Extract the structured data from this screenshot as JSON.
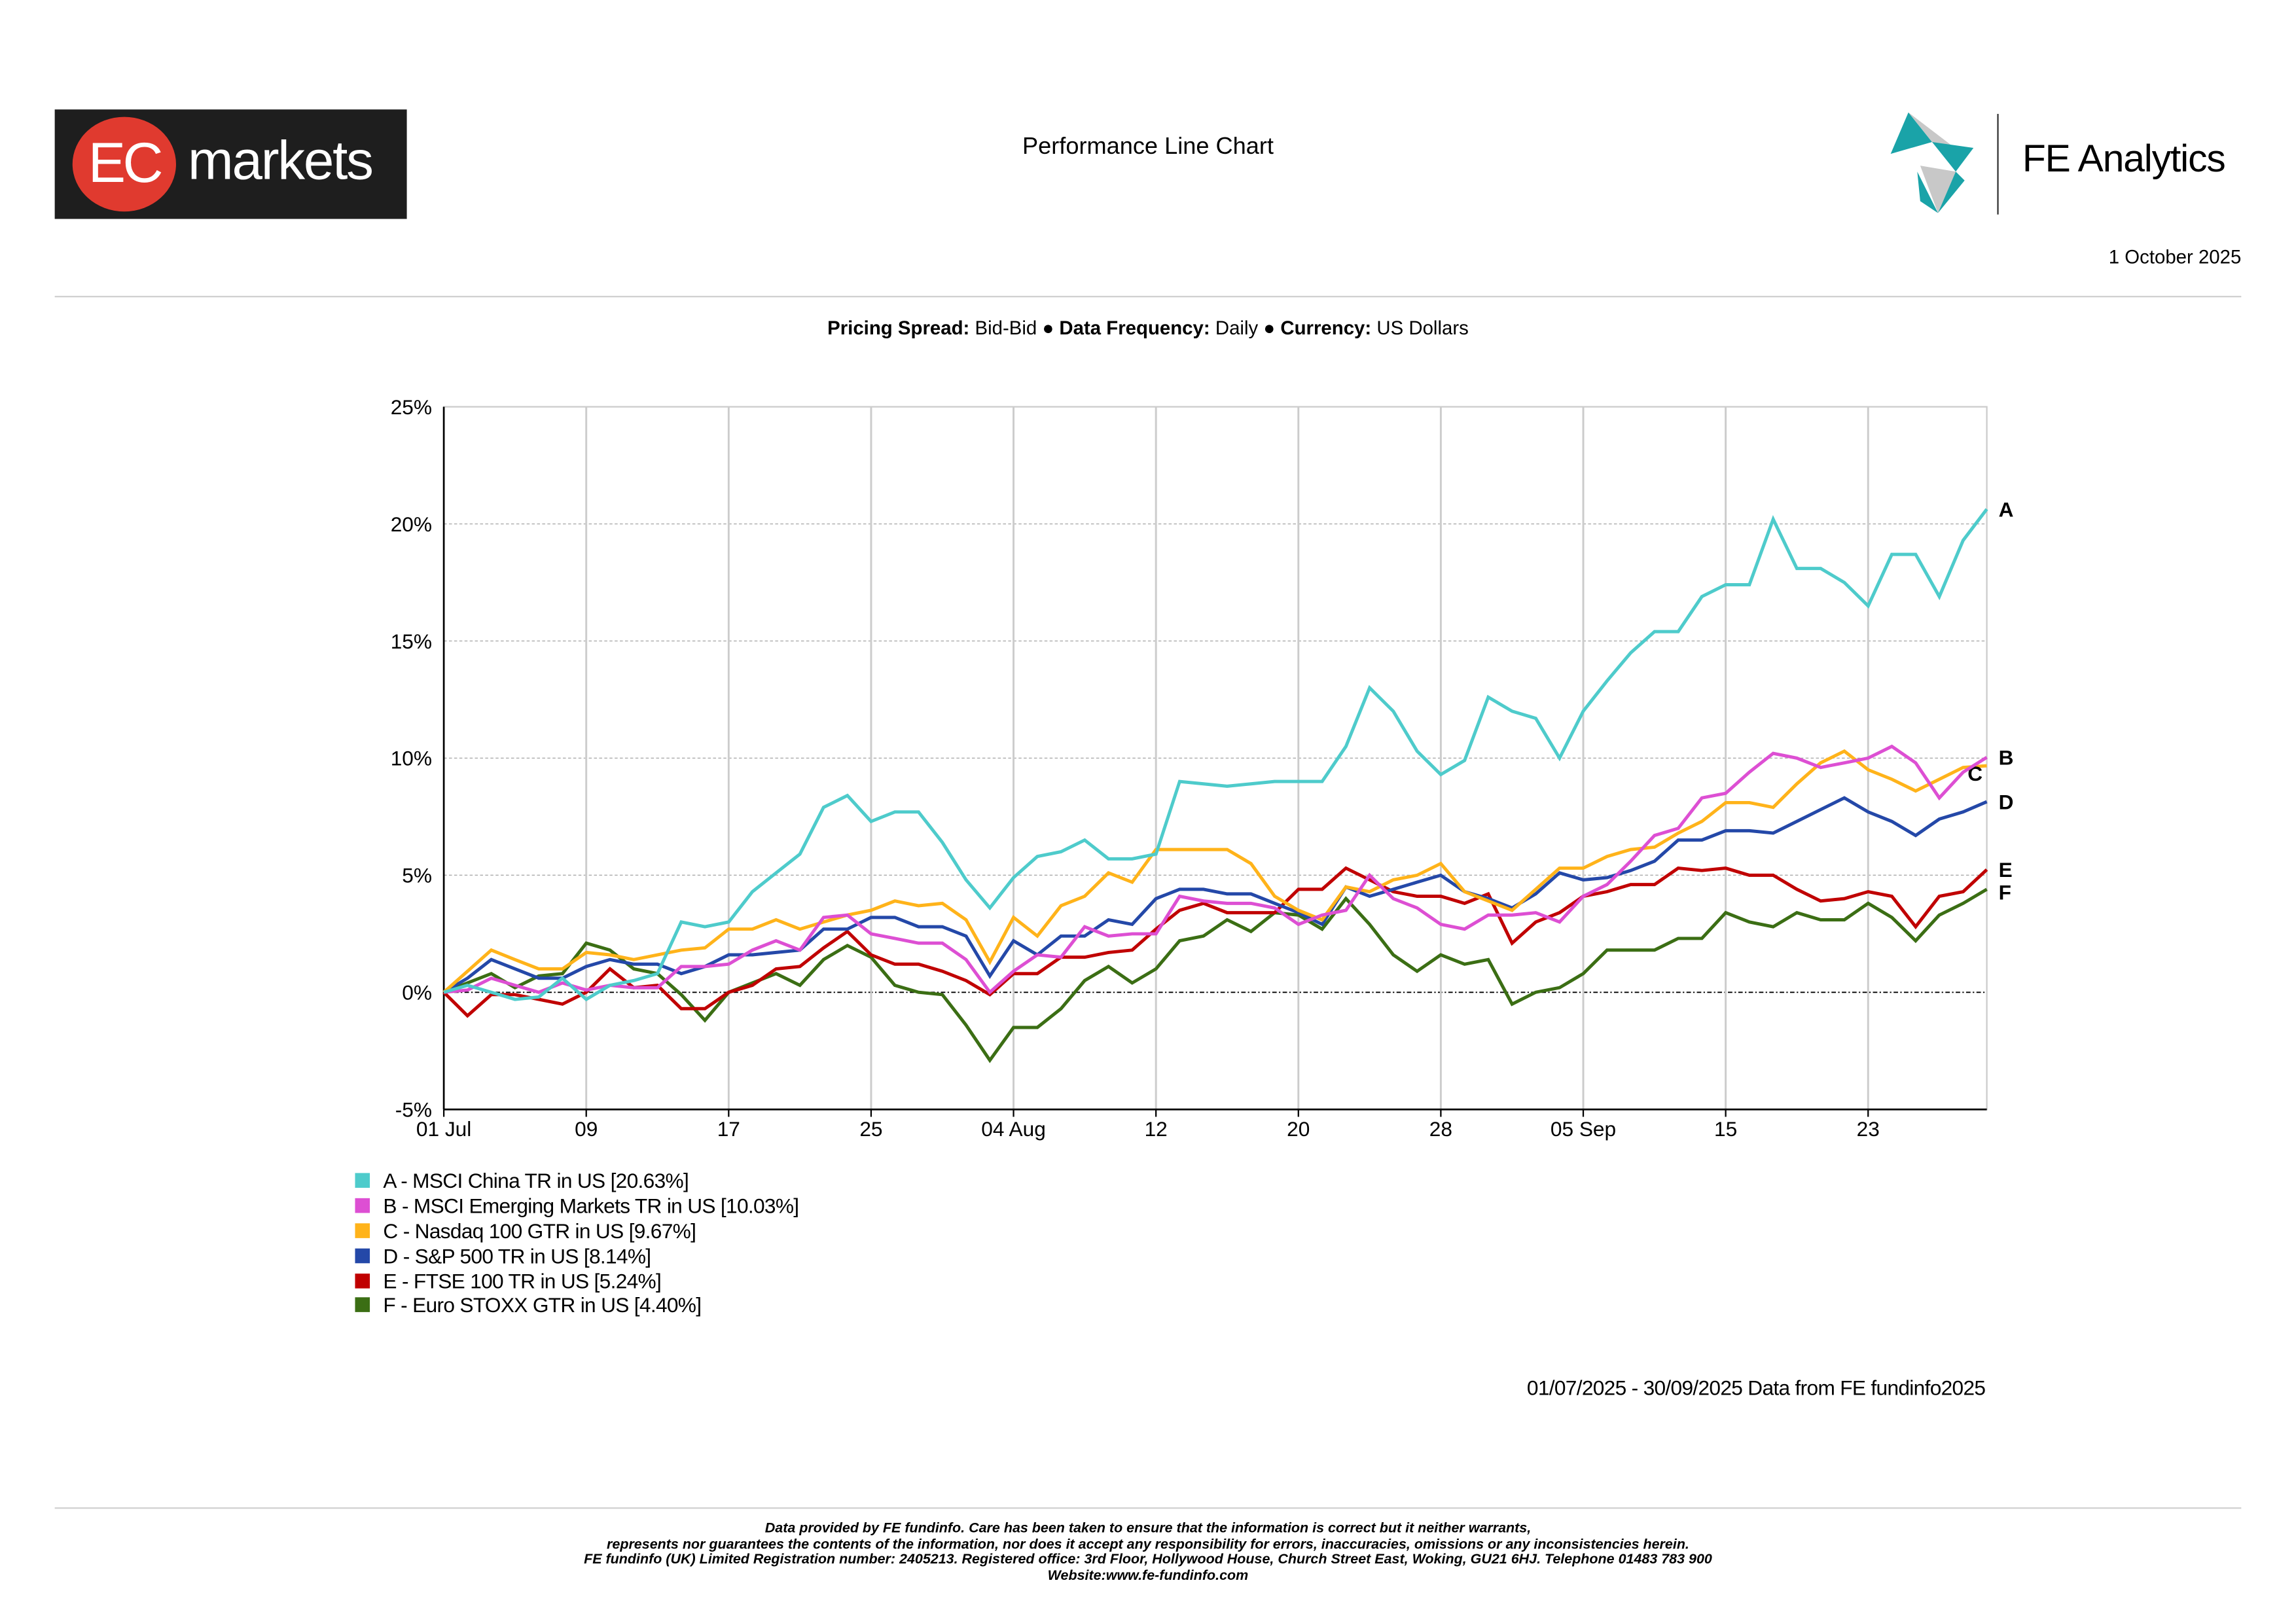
{
  "header": {
    "logo_left": {
      "circle_text": "EC",
      "word": "markets"
    },
    "title": "Performance Line Chart",
    "logo_right": {
      "name": "FE Analytics",
      "colors": [
        "#1aa3a8",
        "#c8c8c8"
      ]
    },
    "date": "1 October 2025"
  },
  "settings": {
    "spread_label": "Pricing Spread:",
    "spread_value": "Bid-Bid",
    "frequency_label": "Data Frequency:",
    "frequency_value": "Daily",
    "currency_label": "Currency:",
    "currency_value": "US Dollars",
    "separator": "●"
  },
  "chart_data": {
    "type": "line",
    "ylim": [
      -5,
      25
    ],
    "y_ticks": [
      -5,
      0,
      5,
      10,
      15,
      20,
      25
    ],
    "y_tick_labels": [
      "-5%",
      "0%",
      "5%",
      "10%",
      "15%",
      "20%",
      "25%"
    ],
    "grid": true,
    "x_tick_labels": [
      {
        "date": "2025-07-01",
        "label": "01 Jul"
      },
      {
        "date": "2025-07-09",
        "label": "09"
      },
      {
        "date": "2025-07-17",
        "label": "17"
      },
      {
        "date": "2025-07-25",
        "label": "25"
      },
      {
        "date": "2025-08-04",
        "label": "04 Aug"
      },
      {
        "date": "2025-08-12",
        "label": "12"
      },
      {
        "date": "2025-08-20",
        "label": "20"
      },
      {
        "date": "2025-08-28",
        "label": "28"
      },
      {
        "date": "2025-09-05",
        "label": "05 Sep"
      },
      {
        "date": "2025-09-15",
        "label": "15"
      },
      {
        "date": "2025-09-23",
        "label": "23"
      }
    ],
    "x": [
      "2025-07-01",
      "2025-07-02",
      "2025-07-03",
      "2025-07-04",
      "2025-07-07",
      "2025-07-08",
      "2025-07-09",
      "2025-07-10",
      "2025-07-11",
      "2025-07-14",
      "2025-07-15",
      "2025-07-16",
      "2025-07-17",
      "2025-07-18",
      "2025-07-21",
      "2025-07-22",
      "2025-07-23",
      "2025-07-24",
      "2025-07-25",
      "2025-07-28",
      "2025-07-29",
      "2025-07-30",
      "2025-07-31",
      "2025-08-01",
      "2025-08-04",
      "2025-08-05",
      "2025-08-06",
      "2025-08-07",
      "2025-08-08",
      "2025-08-11",
      "2025-08-12",
      "2025-08-13",
      "2025-08-14",
      "2025-08-15",
      "2025-08-18",
      "2025-08-19",
      "2025-08-20",
      "2025-08-21",
      "2025-08-22",
      "2025-08-25",
      "2025-08-26",
      "2025-08-27",
      "2025-08-28",
      "2025-08-29",
      "2025-09-01",
      "2025-09-02",
      "2025-09-03",
      "2025-09-04",
      "2025-09-05",
      "2025-09-08",
      "2025-09-09",
      "2025-09-10",
      "2025-09-11",
      "2025-09-12",
      "2025-09-15",
      "2025-09-16",
      "2025-09-17",
      "2025-09-18",
      "2025-09-19",
      "2025-09-22",
      "2025-09-23",
      "2025-09-24",
      "2025-09-25",
      "2025-09-26",
      "2025-09-29",
      "2025-09-30"
    ],
    "series": [
      {
        "letter": "A",
        "name": "A - MSCI China TR in US [20.63%]",
        "color": "#4ecbcb",
        "values": [
          0,
          0.3,
          0,
          -0.3,
          -0.2,
          0.6,
          -0.3,
          0.3,
          0.5,
          0.8,
          3.0,
          2.8,
          3.0,
          4.3,
          5.1,
          5.9,
          7.9,
          8.4,
          7.3,
          7.7,
          7.7,
          6.4,
          4.8,
          3.6,
          4.9,
          5.8,
          6.0,
          6.5,
          5.7,
          5.7,
          5.9,
          9.0,
          8.9,
          8.8,
          8.9,
          9.0,
          9.0,
          9.0,
          10.5,
          13.0,
          12.0,
          10.3,
          9.3,
          9.9,
          12.6,
          12.0,
          11.7,
          10.0,
          12.0,
          13.3,
          14.5,
          15.4,
          15.4,
          16.9,
          17.4,
          17.4,
          20.2,
          18.1,
          18.1,
          17.5,
          16.5,
          18.7,
          18.7,
          16.9,
          19.3,
          20.63
        ]
      },
      {
        "letter": "B",
        "name": "B - MSCI Emerging Markets TR in US [10.03%]",
        "color": "#dd4fd3",
        "values": [
          0,
          0.1,
          0.6,
          0.3,
          0,
          0.4,
          0.1,
          0.3,
          0.2,
          0.2,
          1.1,
          1.1,
          1.2,
          1.8,
          2.2,
          1.8,
          3.2,
          3.3,
          2.5,
          2.3,
          2.1,
          2.1,
          1.4,
          0,
          0.9,
          1.6,
          1.5,
          2.8,
          2.4,
          2.5,
          2.5,
          4.1,
          3.9,
          3.8,
          3.8,
          3.6,
          2.9,
          3.3,
          3.5,
          5.0,
          4.0,
          3.6,
          2.9,
          2.7,
          3.3,
          3.3,
          3.4,
          3.0,
          4.1,
          4.6,
          5.6,
          6.7,
          7.0,
          8.3,
          8.5,
          9.4,
          10.2,
          10.0,
          9.6,
          9.8,
          10.0,
          10.5,
          9.8,
          8.3,
          9.4,
          10.03
        ]
      },
      {
        "letter": "C",
        "name": "C - Nasdaq 100 GTR in US [9.67%]",
        "color": "#ffb31a",
        "values": [
          0,
          0.9,
          1.8,
          1.4,
          1.0,
          1.0,
          1.7,
          1.6,
          1.4,
          1.6,
          1.8,
          1.9,
          2.7,
          2.7,
          3.1,
          2.7,
          3.0,
          3.3,
          3.5,
          3.9,
          3.7,
          3.8,
          3.1,
          1.3,
          3.2,
          2.4,
          3.7,
          4.1,
          5.1,
          4.7,
          6.1,
          6.1,
          6.1,
          6.1,
          5.5,
          4.1,
          3.5,
          3.1,
          4.5,
          4.3,
          4.8,
          5.0,
          5.5,
          4.3,
          3.9,
          3.5,
          4.4,
          5.3,
          5.3,
          5.8,
          6.1,
          6.2,
          6.8,
          7.3,
          8.1,
          8.1,
          7.9,
          8.9,
          9.8,
          10.3,
          9.5,
          9.1,
          8.6,
          9.1,
          9.6,
          9.67
        ]
      },
      {
        "letter": "D",
        "name": "D - S&P 500 TR in US [8.14%]",
        "color": "#2448a8",
        "values": [
          0,
          0.6,
          1.4,
          1.0,
          0.6,
          0.6,
          1.1,
          1.4,
          1.2,
          1.2,
          0.8,
          1.1,
          1.6,
          1.6,
          1.7,
          1.8,
          2.7,
          2.7,
          3.2,
          3.2,
          2.8,
          2.8,
          2.4,
          0.7,
          2.2,
          1.6,
          2.4,
          2.4,
          3.1,
          2.9,
          4.0,
          4.4,
          4.4,
          4.2,
          4.2,
          3.8,
          3.4,
          2.9,
          4.5,
          4.1,
          4.4,
          4.7,
          5.0,
          4.3,
          4.0,
          3.6,
          4.2,
          5.1,
          4.8,
          4.9,
          5.2,
          5.6,
          6.5,
          6.5,
          6.9,
          6.9,
          6.8,
          7.3,
          7.8,
          8.3,
          7.7,
          7.3,
          6.7,
          7.4,
          7.7,
          8.14
        ]
      },
      {
        "letter": "E",
        "name": "E - FTSE 100 TR in US [5.24%]",
        "color": "#c00000",
        "values": [
          0,
          -1.0,
          -0.1,
          -0.1,
          -0.3,
          -0.5,
          0.0,
          1.0,
          0.2,
          0.3,
          -0.7,
          -0.7,
          0.0,
          0.3,
          1.0,
          1.1,
          1.9,
          2.6,
          1.6,
          1.2,
          1.2,
          0.9,
          0.5,
          -0.1,
          0.8,
          0.8,
          1.5,
          1.5,
          1.7,
          1.8,
          2.7,
          3.5,
          3.8,
          3.4,
          3.4,
          3.4,
          4.4,
          4.4,
          5.3,
          4.8,
          4.3,
          4.1,
          4.1,
          3.8,
          4.2,
          2.1,
          3.0,
          3.4,
          4.1,
          4.3,
          4.6,
          4.6,
          5.3,
          5.2,
          5.3,
          5.0,
          5.0,
          4.4,
          3.9,
          4.0,
          4.3,
          4.1,
          2.8,
          4.1,
          4.3,
          5.24
        ]
      },
      {
        "letter": "F",
        "name": "F - Euro STOXX GTR in US [4.40%]",
        "color": "#3b6e14",
        "values": [
          0,
          0.4,
          0.8,
          0.2,
          0.7,
          0.8,
          2.1,
          1.8,
          1.0,
          0.8,
          -0.1,
          -1.2,
          0.0,
          0.4,
          0.8,
          0.3,
          1.4,
          2.0,
          1.5,
          0.3,
          0.0,
          -0.1,
          -1.4,
          -2.9,
          -1.5,
          -1.5,
          -0.7,
          0.5,
          1.1,
          0.4,
          1.0,
          2.2,
          2.4,
          3.1,
          2.6,
          3.4,
          3.3,
          2.7,
          4.0,
          2.9,
          1.6,
          0.9,
          1.6,
          1.2,
          1.4,
          -0.5,
          0.0,
          0.2,
          0.8,
          1.8,
          1.8,
          1.8,
          2.3,
          2.3,
          3.4,
          3.0,
          2.8,
          3.4,
          3.1,
          3.1,
          3.8,
          3.2,
          2.2,
          3.3,
          3.8,
          4.4
        ]
      }
    ]
  },
  "footer": {
    "range": "01/07/2025 - 30/09/2025 Data from FE fundinfo2025",
    "disclaimer": [
      "Data provided by FE fundinfo. Care has been taken to ensure that the information is correct but it neither warrants,",
      "represents nor guarantees the contents of the information, nor does it accept any responsibility for errors, inaccuracies, omissions or any inconsistencies herein.",
      "FE fundinfo (UK) Limited Registration number: 2405213. Registered office: 3rd Floor, Hollywood House, Church Street East, Woking, GU21 6HJ. Telephone 01483 783 900",
      "Website:www.fe-fundinfo.com"
    ]
  }
}
